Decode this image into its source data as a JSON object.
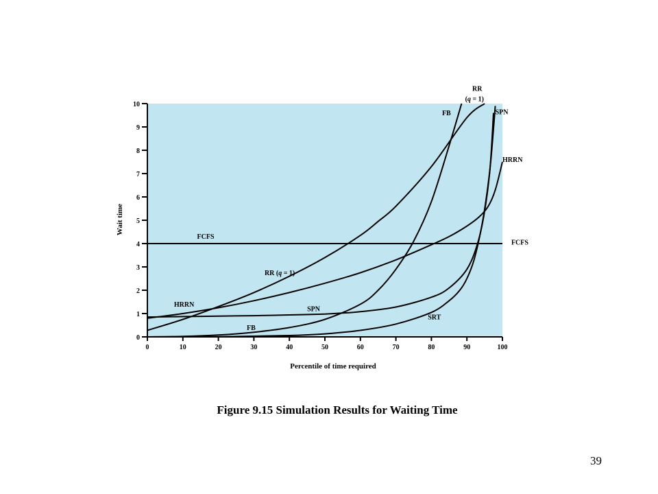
{
  "slide": {
    "caption": "Figure 9.15  Simulation Results for Waiting Time",
    "page_number": "39"
  },
  "chart_data": {
    "type": "line",
    "title": "",
    "xlabel": "Percentile of time required",
    "ylabel": "Wait time",
    "xlim": [
      0,
      100
    ],
    "ylim": [
      0,
      10
    ],
    "xticks": [
      0,
      10,
      20,
      30,
      40,
      50,
      60,
      70,
      80,
      90,
      100
    ],
    "yticks": [
      0,
      1,
      2,
      3,
      4,
      5,
      6,
      7,
      8,
      9,
      10
    ],
    "grid": false,
    "plot_background": "#c2e6f1",
    "line_color": "#000000",
    "series": [
      {
        "name": "FCFS",
        "x": [
          0,
          100
        ],
        "y": [
          4,
          4
        ]
      },
      {
        "name": "RR (q = 1)",
        "x": [
          0,
          10,
          20,
          30,
          40,
          50,
          60,
          65,
          70,
          80,
          90,
          95
        ],
        "y": [
          0.28,
          0.75,
          1.3,
          1.9,
          2.6,
          3.4,
          4.35,
          4.95,
          5.6,
          7.3,
          9.4,
          10
        ]
      },
      {
        "name": "HRRN",
        "x": [
          0,
          10,
          20,
          30,
          40,
          50,
          60,
          70,
          80,
          85,
          90,
          93.5,
          96,
          98,
          100
        ],
        "y": [
          0.8,
          1.0,
          1.25,
          1.55,
          1.9,
          2.3,
          2.75,
          3.3,
          3.95,
          4.3,
          4.75,
          5.15,
          5.6,
          6.3,
          7.5
        ]
      },
      {
        "name": "SPN",
        "x": [
          0,
          10,
          20,
          30,
          40,
          50,
          55,
          60,
          70,
          80,
          85,
          90,
          93,
          95,
          96.5,
          97.5
        ],
        "y": [
          0.85,
          0.87,
          0.89,
          0.91,
          0.94,
          0.98,
          1.02,
          1.08,
          1.28,
          1.7,
          2.1,
          2.9,
          4.0,
          5.4,
          7.2,
          9.6
        ]
      },
      {
        "name": "FB",
        "x": [
          0,
          10,
          20,
          30,
          40,
          50,
          60,
          65,
          70,
          75,
          80,
          85,
          88.5
        ],
        "y": [
          0,
          0.02,
          0.08,
          0.2,
          0.4,
          0.75,
          1.4,
          2.0,
          2.9,
          4.1,
          5.8,
          8.2,
          10
        ]
      },
      {
        "name": "SRT",
        "x": [
          0,
          20,
          40,
          50,
          60,
          70,
          80,
          85,
          88,
          90,
          92,
          94,
          95.5,
          96.7,
          98
        ],
        "y": [
          0,
          0.01,
          0.06,
          0.13,
          0.28,
          0.55,
          1.05,
          1.55,
          2.0,
          2.5,
          3.3,
          4.6,
          6.0,
          7.5,
          9.9
        ]
      }
    ],
    "labels": [
      {
        "text": "FCFS",
        "x": 14,
        "y": 4.2
      },
      {
        "text": "FCFS",
        "x": 102.5,
        "y": 3.95
      },
      {
        "text": "RR (q = 1)",
        "x": 33,
        "y": 2.65
      },
      {
        "text": "HRRN",
        "x": 7.5,
        "y": 1.3
      },
      {
        "text": "SPN",
        "x": 45,
        "y": 1.1
      },
      {
        "text": "FB",
        "x": 28,
        "y": 0.3
      },
      {
        "text": "SRT",
        "x": 79,
        "y": 0.75
      },
      {
        "text": "FB",
        "x": 83,
        "y": 9.5
      },
      {
        "text": "RR",
        "x": 91.5,
        "y": 10.55
      },
      {
        "text": "(q = 1)",
        "x": 89.5,
        "y": 10.1
      },
      {
        "text": "SPN",
        "x": 98,
        "y": 9.55
      },
      {
        "text": "HRRN",
        "x": 100,
        "y": 7.5
      }
    ]
  }
}
